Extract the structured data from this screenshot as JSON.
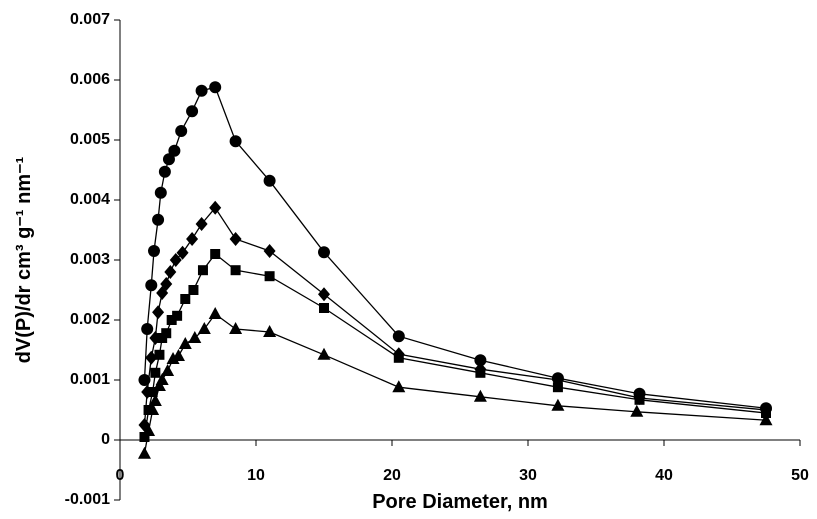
{
  "chart_data": {
    "type": "line",
    "xlabel": "Pore Diameter, nm",
    "ylabel": "dV(P)/dr cm³ g⁻¹ nm⁻¹",
    "xlim": [
      0,
      50
    ],
    "xticks": [
      0,
      10,
      20,
      30,
      40,
      50
    ],
    "ylim": [
      -0.001,
      0.007
    ],
    "yticks": [
      -0.001,
      0,
      0.001,
      0.002,
      0.003,
      0.004,
      0.005,
      0.006,
      0.007
    ],
    "series": [
      {
        "marker": "circle",
        "color": "#000000",
        "x": [
          1.8,
          2.0,
          2.3,
          2.5,
          2.8,
          3.0,
          3.3,
          3.6,
          4.0,
          4.5,
          5.3,
          6.0,
          7.0,
          8.5,
          11.0,
          15.0,
          20.5,
          26.5,
          32.2,
          38.2,
          47.5
        ],
        "values": [
          0.001,
          0.00185,
          0.00258,
          0.00315,
          0.00367,
          0.00412,
          0.00447,
          0.00468,
          0.00482,
          0.00515,
          0.00548,
          0.00582,
          0.00588,
          0.00498,
          0.00432,
          0.00313,
          0.00173,
          0.00133,
          0.00103,
          0.00077,
          0.00053
        ]
      },
      {
        "marker": "diamond",
        "color": "#000000",
        "x": [
          1.8,
          2.0,
          2.3,
          2.6,
          2.8,
          3.1,
          3.4,
          3.7,
          4.1,
          4.6,
          5.3,
          6.0,
          7.0,
          8.5,
          11.0,
          15.0,
          20.5,
          26.5,
          32.2,
          38.2,
          47.5
        ],
        "values": [
          0.00025,
          0.0008,
          0.00137,
          0.0017,
          0.00213,
          0.00245,
          0.0026,
          0.0028,
          0.003,
          0.00312,
          0.00335,
          0.0036,
          0.00387,
          0.00335,
          0.00315,
          0.00243,
          0.00143,
          0.00118,
          0.001,
          0.0007,
          0.0005
        ]
      },
      {
        "marker": "square",
        "color": "#000000",
        "x": [
          1.8,
          2.1,
          2.4,
          2.6,
          2.9,
          3.1,
          3.4,
          3.8,
          4.2,
          4.8,
          5.4,
          6.1,
          7.0,
          8.5,
          11.0,
          15.0,
          20.5,
          26.5,
          32.2,
          38.2,
          47.5
        ],
        "values": [
          5e-05,
          0.0005,
          0.0008,
          0.00112,
          0.00142,
          0.0017,
          0.00178,
          0.002,
          0.00207,
          0.00235,
          0.0025,
          0.00283,
          0.0031,
          0.00283,
          0.00273,
          0.0022,
          0.00137,
          0.00112,
          0.00088,
          0.00067,
          0.00045
        ]
      },
      {
        "marker": "triangle",
        "color": "#000000",
        "x": [
          1.8,
          2.1,
          2.4,
          2.6,
          2.9,
          3.1,
          3.5,
          3.9,
          4.3,
          4.8,
          5.5,
          6.2,
          7.0,
          8.5,
          11.0,
          15.0,
          20.5,
          26.5,
          32.2,
          38.0,
          47.5
        ],
        "values": [
          -0.00023,
          0.00015,
          0.0005,
          0.00065,
          0.0009,
          0.001,
          0.00115,
          0.00135,
          0.0014,
          0.0016,
          0.0017,
          0.00185,
          0.0021,
          0.00185,
          0.0018,
          0.00142,
          0.00088,
          0.00072,
          0.00057,
          0.00047,
          0.00033
        ]
      }
    ]
  }
}
